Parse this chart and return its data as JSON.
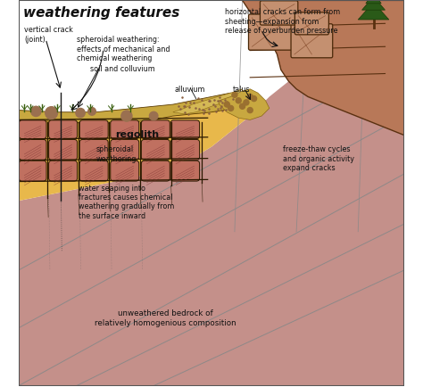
{
  "title": "weathering features",
  "title_fontsize": 11,
  "fig_bg": "#ffffff",
  "border_color": "#555555",
  "regolith_color": "#e8b84b",
  "regolith_edge": "#5a3a00",
  "bedrock_color": "#c4908a",
  "bedrock_edge": "#7a4a45",
  "crack_color": "#1a1a1a",
  "block_fill": "#c07060",
  "block_hatch_color": "#8a4040",
  "soil_surface_color": "#b8a050",
  "talus_color": "#d4a855",
  "cliff_color": "#c4908a",
  "cliff_dark": "#a06858",
  "text_color": "#111111",
  "labels": {
    "vertical_crack": "vertical crack\n(joint)",
    "spheroidal_label": "spheroidal weathering:\neffects of mechanical and\nchemical weathering",
    "soil_colluvium": "soil and colluvium",
    "regolith": "regolith",
    "alluvium": "alluvium",
    "talus": "talus",
    "horizontal_cracks": "horizontal cracks can form from\nsheeting—expansion from\nrelease of overburden pressure",
    "spheroidal_weathering": "spheroidal\nweathering",
    "water_seaping": "water seaping into\nfractures causes chemical\nweathering gradually from\nthe surface inward",
    "freeze_thaw": "freeze-thaw cycles\nand organic activity\nexpand cracks",
    "unweathered": "unweathered bedrock of\nrelatively homogenious composition"
  }
}
